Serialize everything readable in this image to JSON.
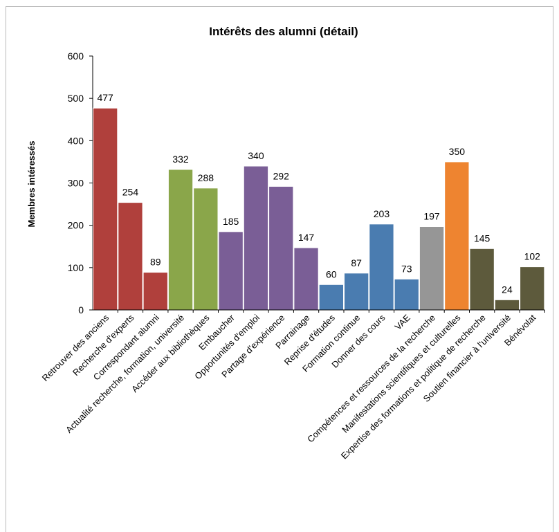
{
  "chart_data": {
    "type": "bar",
    "title": "Intérêts des alumni (détail)",
    "xlabel": "",
    "ylabel": "Membres intéressés",
    "ylim": [
      0,
      600
    ],
    "yticks": [
      0,
      100,
      200,
      300,
      400,
      500,
      600
    ],
    "grid": false,
    "legend": "none",
    "categories": [
      "Retrouver des anciens",
      "Recherche d'experts",
      "Correspondant alumni",
      "Actualité recherche, formation, université",
      "Accéder aux bibliothèques",
      "Embaucher",
      "Opportunités d'emploi",
      "Partage d'expérience",
      "Parrainage",
      "Reprise d'études",
      "Formation continue",
      "Donner des cours",
      "VAE",
      "Compétences et ressources de la recherche",
      "Manifestations scientifiques et culturelles",
      "Expertise des formations et politique de recherche",
      "Soutien financier à l'université",
      "Bénévolat"
    ],
    "values": [
      477,
      254,
      89,
      332,
      288,
      185,
      340,
      292,
      147,
      60,
      87,
      203,
      73,
      197,
      350,
      145,
      24,
      102
    ],
    "colors": [
      "#b0403c",
      "#b0403c",
      "#b0403c",
      "#8aa64a",
      "#8aa64a",
      "#7a5e96",
      "#7a5e96",
      "#7a5e96",
      "#7a5e96",
      "#4a7cb0",
      "#4a7cb0",
      "#4a7cb0",
      "#4a7cb0",
      "#969696",
      "#ee8430",
      "#5d5a3c",
      "#5d5a3c",
      "#5d5a3c"
    ]
  }
}
